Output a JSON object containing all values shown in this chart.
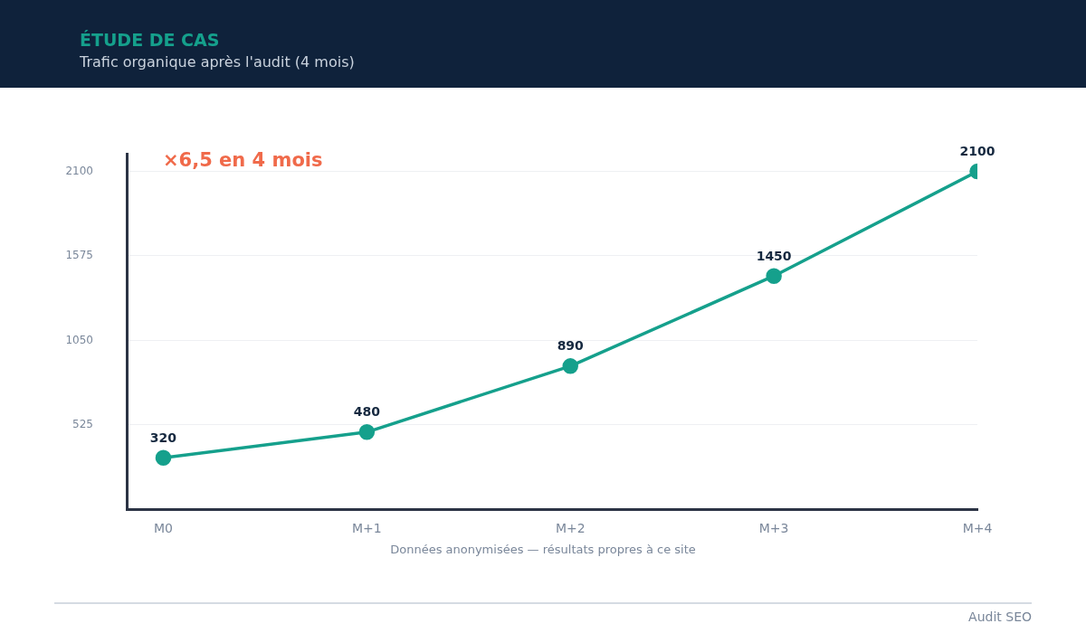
{
  "chart_data": {
    "type": "line",
    "title": "ÉTUDE DE CAS",
    "subtitle": "Trafic organique après l'audit (4 mois)",
    "categories": [
      "M0",
      "M+1",
      "M+2",
      "M+3",
      "M+4"
    ],
    "series": [
      {
        "color": "#15a08c",
        "values": [
          320,
          480,
          890,
          1450,
          2100
        ]
      }
    ],
    "ylim": [
      0,
      2210
    ],
    "yticks": [
      525,
      1050,
      1575,
      2100
    ],
    "grid": "y",
    "marker": "circle",
    "line_style": "solid",
    "data_labels": true,
    "legend": false,
    "annotations": [
      "×6,5 en 4 mois",
      "Données anonymisées — résultats propres à ce site",
      "Audit SEO"
    ]
  }
}
